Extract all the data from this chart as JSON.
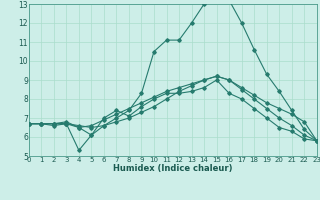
{
  "xlabel": "Humidex (Indice chaleur)",
  "xlim": [
    0,
    23
  ],
  "ylim": [
    5,
    13
  ],
  "xticks": [
    0,
    1,
    2,
    3,
    4,
    5,
    6,
    7,
    8,
    9,
    10,
    11,
    12,
    13,
    14,
    15,
    16,
    17,
    18,
    19,
    20,
    21,
    22,
    23
  ],
  "yticks": [
    5,
    6,
    7,
    8,
    9,
    10,
    11,
    12,
    13
  ],
  "bg_color": "#cdeee8",
  "grid_color": "#aaddcc",
  "line_color": "#267b6e",
  "lines": [
    {
      "x": [
        0,
        1,
        2,
        3,
        4,
        5,
        6,
        7,
        8,
        9,
        10,
        11,
        12,
        13,
        14,
        15,
        16,
        17,
        18,
        19,
        20,
        21,
        22,
        23
      ],
      "y": [
        6.7,
        6.7,
        6.7,
        6.7,
        5.3,
        6.1,
        7.0,
        7.4,
        7.1,
        7.6,
        8.0,
        8.3,
        8.3,
        8.4,
        8.6,
        9.0,
        8.3,
        8.0,
        7.5,
        7.0,
        6.5,
        6.3,
        5.9,
        5.8
      ]
    },
    {
      "x": [
        0,
        1,
        2,
        3,
        4,
        5,
        6,
        7,
        8,
        9,
        10,
        11,
        12,
        13,
        14,
        15,
        16,
        17,
        18,
        19,
        20,
        21,
        22,
        23
      ],
      "y": [
        6.7,
        6.7,
        6.7,
        6.7,
        6.5,
        6.6,
        6.9,
        7.2,
        7.5,
        7.8,
        8.1,
        8.4,
        8.6,
        8.8,
        9.0,
        9.2,
        9.0,
        8.6,
        8.2,
        7.8,
        7.5,
        7.2,
        6.8,
        5.8
      ]
    },
    {
      "x": [
        0,
        1,
        2,
        3,
        4,
        5,
        6,
        7,
        8,
        9,
        10,
        11,
        12,
        13,
        14,
        15,
        16,
        17,
        18,
        19,
        20,
        21,
        22,
        23
      ],
      "y": [
        6.7,
        6.7,
        6.7,
        6.8,
        6.5,
        6.1,
        6.6,
        7.0,
        7.4,
        8.3,
        10.5,
        11.1,
        11.1,
        12.0,
        13.0,
        13.2,
        13.2,
        12.0,
        10.6,
        9.3,
        8.4,
        7.4,
        6.4,
        5.8
      ]
    },
    {
      "x": [
        0,
        1,
        2,
        3,
        4,
        5,
        6,
        7,
        8,
        9,
        10,
        11,
        12,
        13,
        14,
        15,
        16,
        17,
        18,
        19,
        20,
        21,
        22,
        23
      ],
      "y": [
        6.7,
        6.7,
        6.6,
        6.7,
        6.6,
        6.5,
        6.6,
        6.8,
        7.0,
        7.3,
        7.6,
        8.0,
        8.4,
        8.7,
        9.0,
        9.2,
        9.0,
        8.5,
        8.0,
        7.5,
        7.0,
        6.6,
        6.1,
        5.8
      ]
    }
  ]
}
